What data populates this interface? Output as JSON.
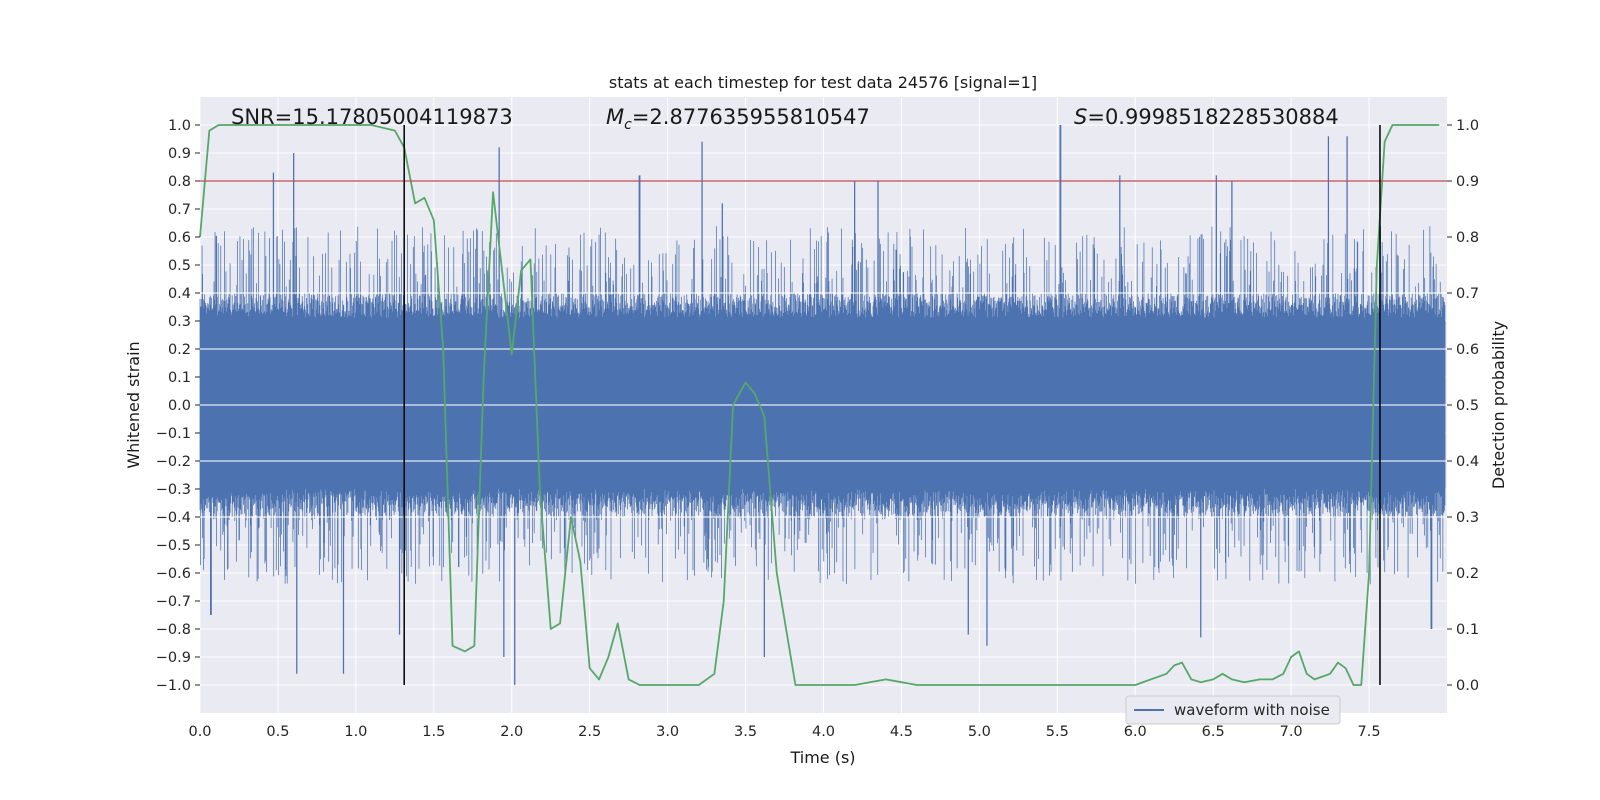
{
  "chart_data": {
    "type": "line",
    "title": "stats at each timestep for test data 24576 [signal=1]",
    "xlabel": "Time (s)",
    "ylabel": "Whitened strain",
    "y2label": "Detection probability",
    "xlim": [
      0.0,
      8.0
    ],
    "ylim": [
      -1.1,
      1.1
    ],
    "y2lim": [
      -0.05,
      1.05
    ],
    "xticks": [
      "0.0",
      "0.5",
      "1.0",
      "1.5",
      "2.0",
      "2.5",
      "3.0",
      "3.5",
      "4.0",
      "4.5",
      "5.0",
      "5.5",
      "6.0",
      "6.5",
      "7.0",
      "7.5"
    ],
    "yticks": [
      "1.0",
      "0.9",
      "0.8",
      "0.7",
      "0.6",
      "0.5",
      "0.4",
      "0.3",
      "0.2",
      "0.1",
      "0.0",
      "−0.1",
      "−0.2",
      "−0.3",
      "−0.4",
      "−0.5",
      "−0.6",
      "−0.7",
      "−0.8",
      "−0.9",
      "−1.0"
    ],
    "y2ticks": [
      "1.0",
      "0.9",
      "0.8",
      "0.7",
      "0.6",
      "0.5",
      "0.4",
      "0.3",
      "0.2",
      "0.1",
      "0.0"
    ],
    "grid": true,
    "annotations": {
      "snr": "SNR=15.17805004119873",
      "mc_symbol": "M",
      "mc_subscript": "c",
      "mc_value": "=2.877635955810547",
      "s_symbol": "S",
      "s_value": "=0.9998518228530884"
    },
    "threshold": {
      "y2": 0.9,
      "color": "#c44e52"
    },
    "vertical_lines": [
      1.31,
      7.57
    ],
    "legend": {
      "label": "waveform with noise",
      "location": "lower-right"
    },
    "colors": {
      "waveform": "#4c72b0",
      "probability": "#55a868",
      "background": "#eaeaf2",
      "grid": "#ffffff"
    },
    "series": [
      {
        "name": "waveform with noise",
        "axis": "left",
        "style": "dense-noise",
        "typical_amplitude": 0.4,
        "peak_highs": [
          [
            0.47,
            0.83
          ],
          [
            0.6,
            0.9
          ],
          [
            1.92,
            0.92
          ],
          [
            2.82,
            0.82
          ],
          [
            3.22,
            0.94
          ],
          [
            3.35,
            0.72
          ],
          [
            4.2,
            0.8
          ],
          [
            4.35,
            0.8
          ],
          [
            5.52,
            1.0
          ],
          [
            5.9,
            0.82
          ],
          [
            6.52,
            0.82
          ],
          [
            6.62,
            0.8
          ],
          [
            7.24,
            0.96
          ],
          [
            7.36,
            0.96
          ]
        ],
        "peak_lows": [
          [
            0.07,
            -0.75
          ],
          [
            0.62,
            -0.96
          ],
          [
            0.92,
            -0.96
          ],
          [
            1.28,
            -0.82
          ],
          [
            1.95,
            -0.9
          ],
          [
            2.02,
            -1.0
          ],
          [
            3.62,
            -0.9
          ],
          [
            4.93,
            -0.82
          ],
          [
            5.05,
            -0.86
          ],
          [
            6.42,
            -0.83
          ],
          [
            7.9,
            -0.8
          ]
        ]
      },
      {
        "name": "detection probability",
        "axis": "right",
        "x": [
          0.0,
          0.06,
          0.12,
          0.2,
          0.3,
          0.5,
          0.7,
          0.9,
          1.0,
          1.1,
          1.25,
          1.31,
          1.38,
          1.44,
          1.5,
          1.56,
          1.62,
          1.7,
          1.76,
          1.82,
          1.88,
          2.0,
          2.06,
          2.12,
          2.18,
          2.25,
          2.31,
          2.38,
          2.44,
          2.5,
          2.56,
          2.62,
          2.68,
          2.75,
          2.82,
          2.9,
          3.0,
          3.1,
          3.2,
          3.3,
          3.36,
          3.42,
          3.5,
          3.56,
          3.62,
          3.7,
          3.76,
          3.82,
          3.9,
          4.0,
          4.2,
          4.4,
          4.6,
          4.8,
          5.0,
          5.2,
          5.4,
          5.6,
          5.8,
          6.0,
          6.2,
          6.25,
          6.3,
          6.36,
          6.42,
          6.5,
          6.56,
          6.62,
          6.7,
          6.8,
          6.88,
          6.95,
          7.0,
          7.05,
          7.1,
          7.15,
          7.2,
          7.25,
          7.3,
          7.35,
          7.4,
          7.45,
          7.5,
          7.55,
          7.6,
          7.65,
          7.7,
          7.8,
          7.95
        ],
        "y": [
          0.8,
          0.99,
          1.0,
          1.0,
          1.0,
          1.0,
          1.0,
          1.0,
          1.0,
          1.0,
          0.99,
          0.96,
          0.86,
          0.87,
          0.83,
          0.6,
          0.07,
          0.06,
          0.07,
          0.55,
          0.88,
          0.59,
          0.74,
          0.76,
          0.35,
          0.1,
          0.11,
          0.3,
          0.22,
          0.03,
          0.01,
          0.05,
          0.11,
          0.01,
          0.0,
          0.0,
          0.0,
          0.0,
          0.0,
          0.02,
          0.15,
          0.5,
          0.54,
          0.52,
          0.48,
          0.2,
          0.1,
          0.0,
          0.0,
          0.0,
          0.0,
          0.01,
          0.0,
          0.0,
          0.0,
          0.0,
          0.0,
          0.0,
          0.0,
          0.0,
          0.02,
          0.035,
          0.04,
          0.01,
          0.005,
          0.01,
          0.02,
          0.01,
          0.005,
          0.01,
          0.01,
          0.02,
          0.05,
          0.06,
          0.02,
          0.01,
          0.015,
          0.02,
          0.04,
          0.03,
          0.0,
          0.0,
          0.2,
          0.75,
          0.97,
          1.0,
          1.0,
          1.0,
          1.0
        ]
      }
    ]
  }
}
